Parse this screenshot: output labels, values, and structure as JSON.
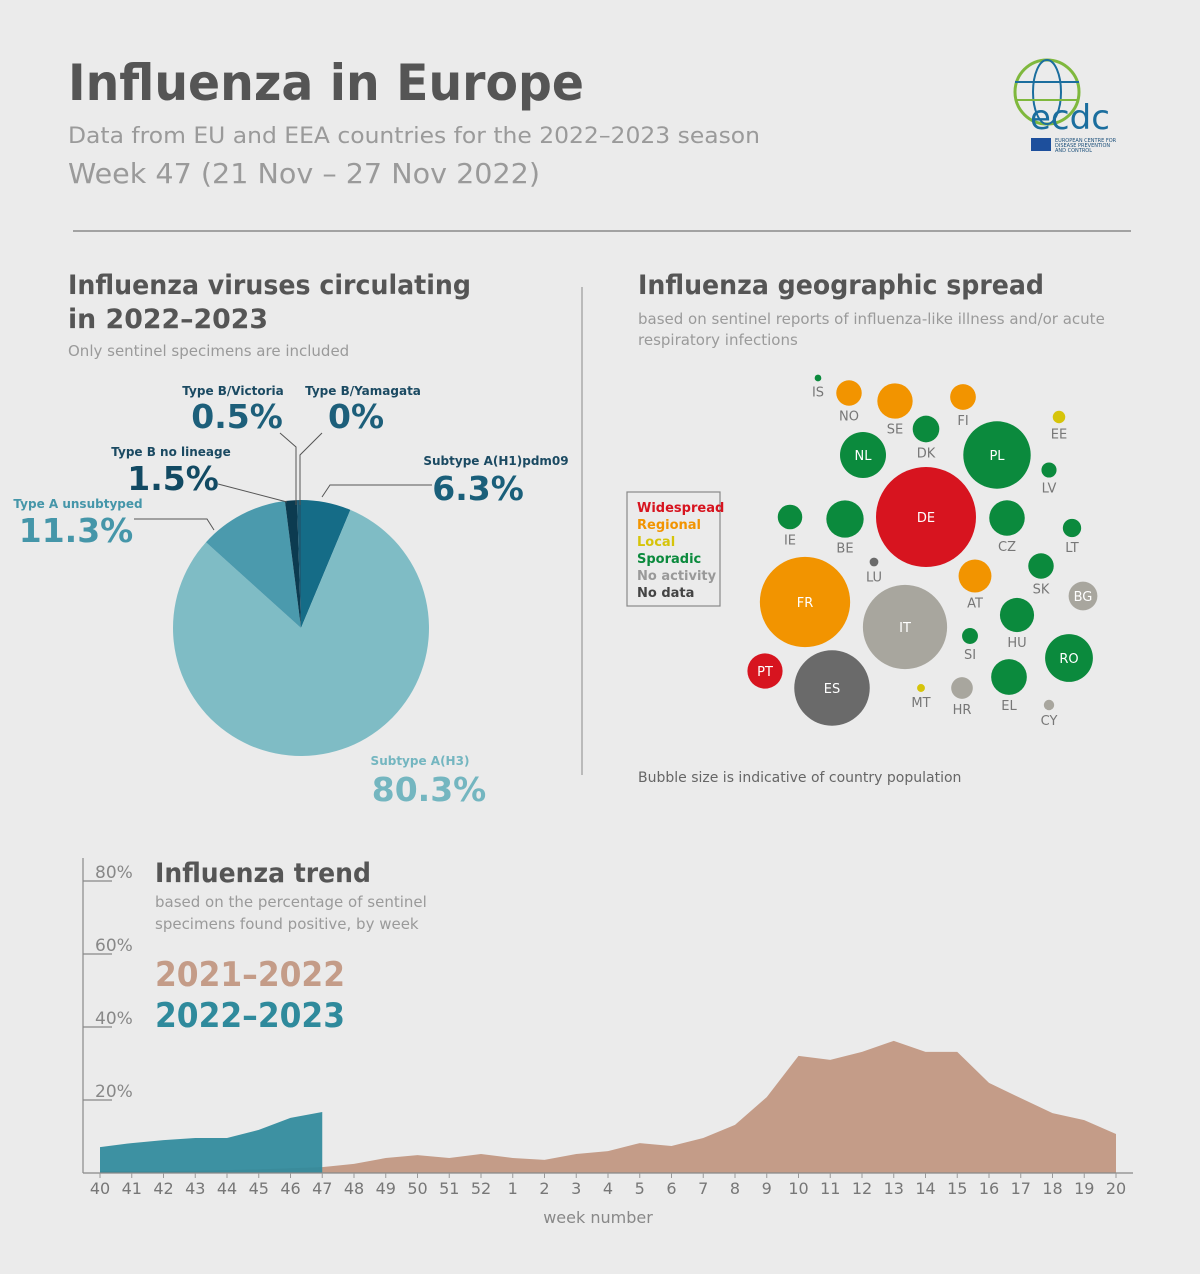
{
  "header": {
    "title": "Influenza in Europe",
    "subtitle": "Data from EU and EEA countries for the 2022–2023 season",
    "week": "Week 47 (21 Nov – 27 Nov 2022)"
  },
  "logo": {
    "name": "ecdc",
    "full_name_lines": [
      "EUROPEAN CENTRE FOR",
      "DISEASE PREVENTION",
      "AND CONTROL"
    ]
  },
  "chart_data": [
    {
      "type": "pie",
      "title": [
        "Influenza viruses circulating",
        "in 2022–2023"
      ],
      "subtitle": "Only sentinel specimens are included",
      "categories": [
        "Subtype A(H1)pdm09",
        "Subtype A(H3)",
        "Type A unsubtyped",
        "Type B no lineage",
        "Type B/Victoria",
        "Type B/Yamagata"
      ],
      "values": [
        6.3,
        80.3,
        11.3,
        1.5,
        0.5,
        0
      ],
      "value_labels": [
        "6.3%",
        "80.3%",
        "11.3%",
        "1.5%",
        "0.5%",
        "0%"
      ],
      "colors": [
        "#156c87",
        "#7fbcc5",
        "#4b9aad",
        "#0c3b50",
        "#1c5b74",
        "#0b3750"
      ],
      "label_colors": [
        "#1a5f7a",
        "#74b6c0",
        "#4596a9",
        "#124a63",
        "#1d5f7a",
        "#1d5f7a"
      ]
    },
    {
      "type": "bubble",
      "title": "Influenza geographic spread",
      "subtitle": [
        "based on sentinel reports of influenza-like illness and/or acute",
        "respiratory infections"
      ],
      "legend": [
        {
          "name": "Widespread",
          "color": "#d7141f"
        },
        {
          "name": "Regional",
          "color": "#f29400"
        },
        {
          "name": "Local",
          "color": "#d6c40a"
        },
        {
          "name": "Sporadic",
          "color": "#0b8a3d"
        },
        {
          "name": "No activity",
          "color": "#a8a69e"
        },
        {
          "name": "No data",
          "color": "#6a6a6a"
        }
      ],
      "categories": [
        "IS",
        "NO",
        "SE",
        "FI",
        "EE",
        "NL",
        "DK",
        "PL",
        "LV",
        "DE",
        "IE",
        "BE",
        "CZ",
        "LT",
        "LU",
        "FR",
        "AT",
        "SK",
        "BG",
        "IT",
        "HU",
        "SI",
        "RO",
        "PT",
        "ES",
        "MT",
        "HR",
        "EL",
        "CY"
      ],
      "activity": [
        3,
        1,
        1,
        1,
        2,
        3,
        3,
        3,
        3,
        0,
        3,
        3,
        3,
        3,
        5,
        1,
        1,
        3,
        4,
        4,
        3,
        3,
        3,
        0,
        5,
        2,
        4,
        3,
        4
      ],
      "population": [
        0.37,
        5.4,
        10.4,
        5.5,
        1.3,
        17.6,
        5.9,
        37.8,
        1.9,
        83.2,
        5.0,
        11.6,
        10.5,
        2.8,
        0.64,
        67.8,
        9.0,
        5.4,
        6.9,
        59.0,
        9.7,
        2.1,
        19.0,
        10.3,
        47.4,
        0.52,
        3.9,
        10.6,
        0.9
      ],
      "note": "Bubble size is indicative of country population"
    },
    {
      "type": "area",
      "title": "Influenza trend",
      "subtitle": [
        "based on the percentage of sentinel",
        "specimens found positive, by week"
      ],
      "categories": [
        "40",
        "41",
        "42",
        "43",
        "44",
        "45",
        "46",
        "47",
        "48",
        "49",
        "50",
        "51",
        "52",
        "1",
        "2",
        "3",
        "4",
        "5",
        "6",
        "7",
        "8",
        "9",
        "10",
        "11",
        "12",
        "13",
        "14",
        "15",
        "16",
        "17",
        "18",
        "19",
        "20"
      ],
      "series": [
        {
          "name": "2021–2022",
          "color": "#c49c88",
          "values": [
            0.5,
            0.5,
            0.5,
            0.6,
            0.8,
            1.0,
            1.3,
            1.6,
            2.5,
            4.1,
            4.9,
            4.1,
            5.2,
            4.1,
            3.6,
            5.2,
            6.0,
            8.2,
            7.4,
            9.6,
            13.2,
            20.8,
            32.1,
            31.0,
            33.2,
            36.2,
            33.2,
            33.2,
            24.7,
            20.5,
            16.4,
            14.5,
            10.7
          ]
        },
        {
          "name": "2022–2023",
          "color": "#2f8a9c",
          "values": [
            7.1,
            8.2,
            9.0,
            9.6,
            9.6,
            11.8,
            15.1,
            16.7,
            null,
            null,
            null,
            null,
            null,
            null,
            null,
            null,
            null,
            null,
            null,
            null,
            null,
            null,
            null,
            null,
            null,
            null,
            null,
            null,
            null,
            null,
            null,
            null,
            null
          ]
        }
      ],
      "ylim": [
        0,
        80
      ],
      "yticks": [
        {
          "value": 20,
          "label": "20%"
        },
        {
          "value": 40,
          "label": "40%"
        },
        {
          "value": 60,
          "label": "60%"
        },
        {
          "value": 80,
          "label": "80%"
        }
      ],
      "xlabel": "week number"
    }
  ]
}
